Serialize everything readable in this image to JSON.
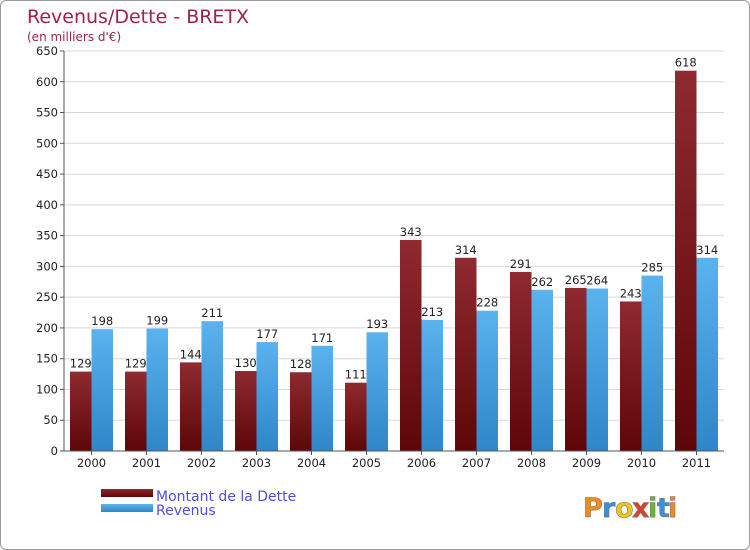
{
  "chart_data": {
    "type": "bar",
    "title": "Revenus/Dette - BRETX",
    "subtitle": "(en milliers d'€)",
    "categories": [
      "2000",
      "2001",
      "2002",
      "2003",
      "2004",
      "2005",
      "2006",
      "2007",
      "2008",
      "2009",
      "2010",
      "2011"
    ],
    "series": [
      {
        "name": "Montant de la Dette",
        "color": "#7d1419",
        "values": [
          129,
          129,
          144,
          130,
          128,
          111,
          343,
          314,
          291,
          265,
          243,
          618
        ]
      },
      {
        "name": "Revenus",
        "color": "#4ea6e6",
        "values": [
          198,
          199,
          211,
          177,
          171,
          193,
          213,
          228,
          262,
          264,
          285,
          314
        ]
      }
    ],
    "ylim": [
      0,
      650
    ],
    "yticks": [
      0,
      50,
      100,
      150,
      200,
      250,
      300,
      350,
      400,
      450,
      500,
      550,
      600,
      650
    ],
    "grid": true,
    "legend_position": "bottom-left"
  },
  "logo": {
    "text": "Proxiti",
    "letters": [
      {
        "char": "P",
        "color": "#f08a1c"
      },
      {
        "char": "r",
        "color": "#3a8fd8"
      },
      {
        "char": "o",
        "color": "#f0c419"
      },
      {
        "char": "x",
        "color": "#e0402a"
      },
      {
        "char": "i",
        "color": "#6bb52e"
      },
      {
        "char": "t",
        "color": "#3a8fd8"
      },
      {
        "char": "i",
        "color": "#f08a1c"
      }
    ]
  }
}
